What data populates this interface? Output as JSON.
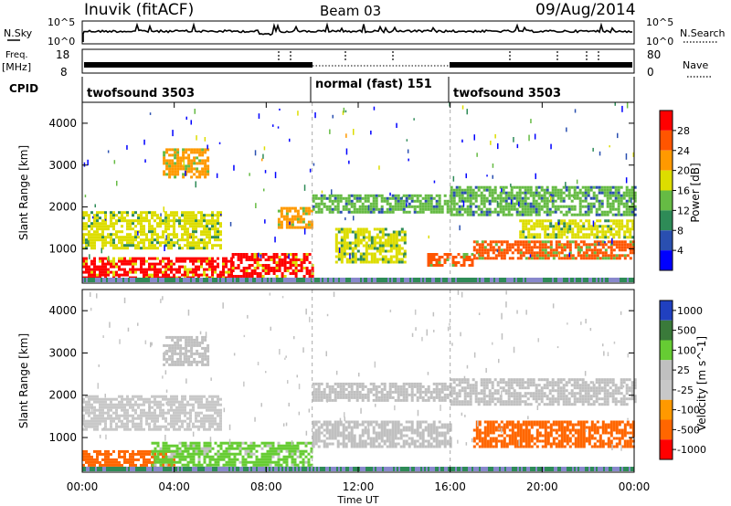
{
  "header": {
    "station": "Inuvik (fitACF)",
    "beam": "Beam 03",
    "date": "09/Aug/2014"
  },
  "top_panels": {
    "nsky": {
      "label": "N.Sky",
      "ticks": [
        "10^5",
        "10^0"
      ],
      "right_ticks": [
        "10^5",
        "10^0"
      ],
      "right_label": "N.Search"
    },
    "freq": {
      "label_top": "Freq.",
      "label_bottom": "[MHz]",
      "ticks": [
        "18",
        "8"
      ],
      "right_ticks": [
        "80",
        "0"
      ],
      "right_label": "Nave"
    },
    "cpid": {
      "label": "CPID",
      "segments": [
        {
          "name": "twofsound 3503",
          "start": 0,
          "end": 10
        },
        {
          "name": "normal (fast) 151",
          "start": 10,
          "end": 16
        },
        {
          "name": "twofsound 3503",
          "start": 16,
          "end": 24
        }
      ]
    }
  },
  "chart_data": [
    {
      "type": "heatmap",
      "title": "",
      "xlabel": "",
      "ylabel": "Slant Range [km]",
      "xlim": [
        0,
        24
      ],
      "ylim": [
        180,
        4500
      ],
      "yticks": [
        1000,
        2000,
        3000,
        4000
      ],
      "colorbar": {
        "label": "Power [dB]",
        "ticks": [
          4,
          8,
          12,
          16,
          20,
          24,
          28
        ],
        "range": [
          0,
          30
        ],
        "colors": [
          "#0000ff",
          "#2a4fb0",
          "#2e8b57",
          "#66bb44",
          "#dddd00",
          "#ff9900",
          "#ff5500",
          "#ff0000"
        ]
      },
      "regions": [
        {
          "x": [
            0,
            6.5
          ],
          "y": [
            300,
            800
          ],
          "value": 28
        },
        {
          "x": [
            6.5,
            10
          ],
          "y": [
            250,
            900
          ],
          "value": 30
        },
        {
          "x": [
            0,
            6
          ],
          "y": [
            1000,
            1900
          ],
          "value": 16
        },
        {
          "x": [
            3.5,
            5.5
          ],
          "y": [
            2700,
            3400
          ],
          "value": 20
        },
        {
          "x": [
            8.5,
            10
          ],
          "y": [
            1500,
            2000
          ],
          "value": 22
        },
        {
          "x": [
            10,
            16
          ],
          "y": [
            1900,
            2300
          ],
          "value": 12
        },
        {
          "x": [
            11,
            14
          ],
          "y": [
            700,
            1500
          ],
          "value": 18
        },
        {
          "x": [
            15,
            17
          ],
          "y": [
            600,
            900
          ],
          "value": 26
        },
        {
          "x": [
            16,
            24
          ],
          "y": [
            1800,
            2500
          ],
          "value": 12
        },
        {
          "x": [
            17,
            24
          ],
          "y": [
            800,
            1200
          ],
          "value": 24
        },
        {
          "x": [
            19,
            24
          ],
          "y": [
            1300,
            1700
          ],
          "value": 18
        }
      ]
    },
    {
      "type": "heatmap",
      "title": "",
      "xlabel": "Time UT",
      "ylabel": "Slant Range [km]",
      "xlim": [
        0,
        24
      ],
      "ylim": [
        180,
        4500
      ],
      "yticks": [
        1000,
        2000,
        3000,
        4000
      ],
      "xticks": [
        "00:00",
        "04:00",
        "08:00",
        "12:00",
        "16:00",
        "20:00",
        "00:00"
      ],
      "colorbar": {
        "label": "Velocity [m s^-1]",
        "ticks": [
          "1000",
          "500",
          "100",
          "25",
          "-25",
          "-100",
          "-500",
          "-1000"
        ],
        "colors": [
          "#2040c0",
          "#3a7a3a",
          "#66cc33",
          "#c0c0c0",
          "#c8c8c8",
          "#ff9900",
          "#ff6600",
          "#ff0000"
        ]
      },
      "regions": [
        {
          "x": [
            0,
            4
          ],
          "y": [
            300,
            700
          ],
          "value": -500
        },
        {
          "x": [
            3,
            10
          ],
          "y": [
            300,
            900
          ],
          "value": 100
        },
        {
          "x": [
            0,
            6
          ],
          "y": [
            1200,
            2000
          ],
          "value": -25
        },
        {
          "x": [
            3.5,
            5.5
          ],
          "y": [
            2700,
            3400
          ],
          "value": 25
        },
        {
          "x": [
            10,
            16
          ],
          "y": [
            1900,
            2300
          ],
          "value": 25
        },
        {
          "x": [
            10,
            16
          ],
          "y": [
            800,
            1400
          ],
          "value": 25
        },
        {
          "x": [
            16,
            24
          ],
          "y": [
            1800,
            2400
          ],
          "value": 25
        },
        {
          "x": [
            17,
            24
          ],
          "y": [
            800,
            1400
          ],
          "value": -500
        }
      ]
    }
  ]
}
